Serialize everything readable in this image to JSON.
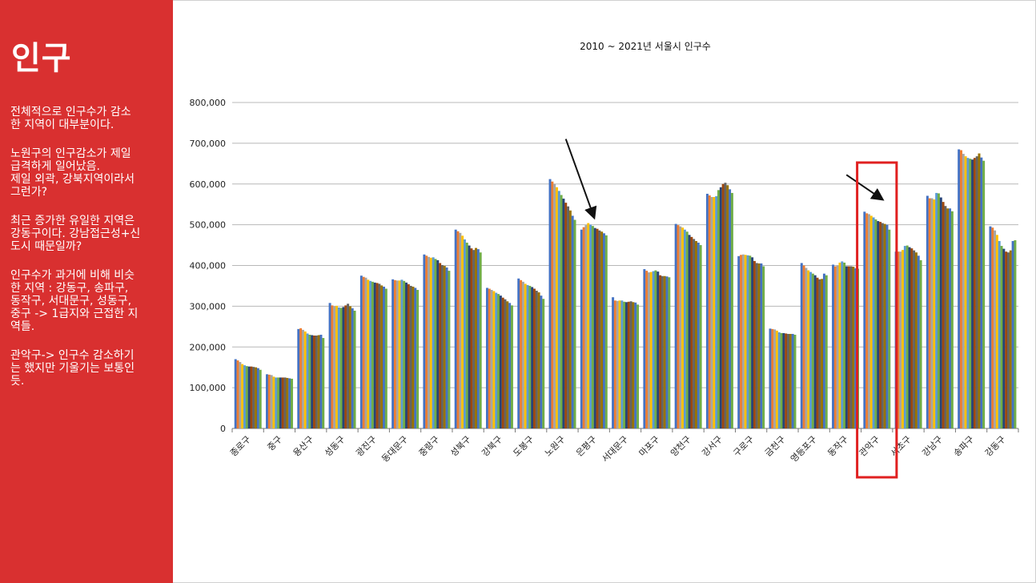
{
  "slide": {
    "heading": "인구",
    "notes": [
      "전체적으로 인구수가 감소\n한 지역이 대부분이다.",
      "노원구의 인구감소가 제일\n급격하게 일어났음.\n제일 외곽, 강북지역이라서\n그런가?",
      "최근 증가한 유일한 지역은\n강동구이다. 강남접근성+신\n도시 때문일까?",
      "인구수가 과거에 비해 비슷\n한 지역 : 강동구, 송파구,\n동작구, 서대문구, 성동구,\n중구 -> 1급지와 근접한 지\n역들.",
      "관악구-> 인구수 감소하기\n는 했지만 기울기는 보통인\n듯."
    ]
  },
  "colors": {
    "sidebar_bg": "#d93030",
    "highlight_box": "#e02020",
    "series_palette": [
      "#4472c4",
      "#ed7d31",
      "#a5a5a5",
      "#ffc000",
      "#5b9bd5",
      "#70ad47",
      "#264478",
      "#9e480e",
      "#636363",
      "#997300",
      "#4472c4",
      "#70ad47"
    ]
  },
  "chart_data": {
    "type": "bar",
    "title": "2010 ~ 2021년 서울시 인구수",
    "xlabel": "",
    "ylabel": "",
    "ylim": [
      0,
      800000
    ],
    "yticks": [
      "0",
      "100,000",
      "200,000",
      "300,000",
      "400,000",
      "500,000",
      "600,000",
      "700,000",
      "800,000"
    ],
    "grid": true,
    "legend": "none",
    "categories": [
      "종로구",
      "중구",
      "용산구",
      "성동구",
      "광진구",
      "동대문구",
      "중랑구",
      "성북구",
      "강북구",
      "도봉구",
      "노원구",
      "은평구",
      "서대문구",
      "마포구",
      "양천구",
      "강서구",
      "구로구",
      "금천구",
      "영등포구",
      "동작구",
      "관악구",
      "서초구",
      "강남구",
      "송파구",
      "강동구"
    ],
    "series_count": 12,
    "values": [
      [
        170000,
        167000,
        163000,
        158000,
        155000,
        153000,
        152000,
        152000,
        151000,
        150000,
        148000,
        144000
      ],
      [
        133000,
        132000,
        131000,
        127000,
        125000,
        125000,
        125000,
        125000,
        125000,
        124000,
        123000,
        122000
      ],
      [
        244000,
        246000,
        242000,
        238000,
        233000,
        230000,
        229000,
        228000,
        228000,
        229000,
        230000,
        222000
      ],
      [
        308000,
        302000,
        300000,
        301000,
        297000,
        296000,
        298000,
        302000,
        306000,
        300000,
        295000,
        289000
      ],
      [
        375000,
        372000,
        370000,
        365000,
        362000,
        360000,
        358000,
        357000,
        355000,
        351000,
        348000,
        343000
      ],
      [
        366000,
        364000,
        363000,
        363000,
        365000,
        362000,
        358000,
        354000,
        350000,
        348000,
        345000,
        340000
      ],
      [
        427000,
        424000,
        421000,
        419000,
        420000,
        416000,
        413000,
        406000,
        401000,
        399000,
        395000,
        387000
      ],
      [
        488000,
        484000,
        480000,
        473000,
        464000,
        456000,
        449000,
        442000,
        438000,
        443000,
        440000,
        432000
      ],
      [
        345000,
        343000,
        340000,
        337000,
        333000,
        330000,
        326000,
        321000,
        317000,
        312000,
        308000,
        302000
      ],
      [
        368000,
        364000,
        360000,
        355000,
        352000,
        350000,
        347000,
        343000,
        338000,
        334000,
        326000,
        318000
      ],
      [
        612000,
        606000,
        600000,
        592000,
        583000,
        573000,
        564000,
        554000,
        545000,
        535000,
        522000,
        512000
      ],
      [
        488000,
        494000,
        499000,
        504000,
        500000,
        497000,
        492000,
        490000,
        486000,
        483000,
        479000,
        474000
      ],
      [
        322000,
        314000,
        313000,
        314000,
        314000,
        311000,
        310000,
        311000,
        312000,
        310000,
        309000,
        304000
      ],
      [
        391000,
        387000,
        383000,
        384000,
        386000,
        388000,
        385000,
        376000,
        374000,
        374000,
        373000,
        371000
      ],
      [
        502000,
        499000,
        496000,
        493000,
        488000,
        483000,
        475000,
        470000,
        465000,
        460000,
        456000,
        450000
      ],
      [
        576000,
        572000,
        568000,
        568000,
        570000,
        585000,
        592000,
        600000,
        603000,
        597000,
        587000,
        578000
      ],
      [
        423000,
        426000,
        427000,
        426000,
        425000,
        424000,
        420000,
        411000,
        406000,
        405000,
        405000,
        398000
      ],
      [
        245000,
        244000,
        243000,
        240000,
        236000,
        234000,
        234000,
        233000,
        232000,
        232000,
        232000,
        230000
      ],
      [
        406000,
        400000,
        394000,
        388000,
        384000,
        380000,
        376000,
        370000,
        366000,
        367000,
        380000,
        376000
      ],
      [
        402000,
        398000,
        400000,
        407000,
        410000,
        407000,
        398000,
        398000,
        398000,
        397000,
        393000,
        392000
      ],
      [
        532000,
        528000,
        526000,
        522000,
        518000,
        513000,
        509000,
        507000,
        504000,
        502000,
        500000,
        488000
      ],
      [
        434000,
        434000,
        434000,
        438000,
        448000,
        449000,
        445000,
        442000,
        437000,
        432000,
        424000,
        413000
      ],
      [
        571000,
        565000,
        565000,
        562000,
        578000,
        577000,
        567000,
        556000,
        546000,
        540000,
        540000,
        533000
      ],
      [
        685000,
        683000,
        674000,
        668000,
        664000,
        662000,
        660000,
        664000,
        668000,
        675000,
        665000,
        657000
      ],
      [
        496000,
        493000,
        486000,
        475000,
        460000,
        448000,
        441000,
        434000,
        432000,
        437000,
        460000,
        462000
      ]
    ],
    "annotations": [
      {
        "type": "arrow",
        "target": "은평구"
      },
      {
        "type": "arrow",
        "target": "관악구"
      },
      {
        "type": "highlight-box",
        "target": "관악구"
      }
    ]
  }
}
